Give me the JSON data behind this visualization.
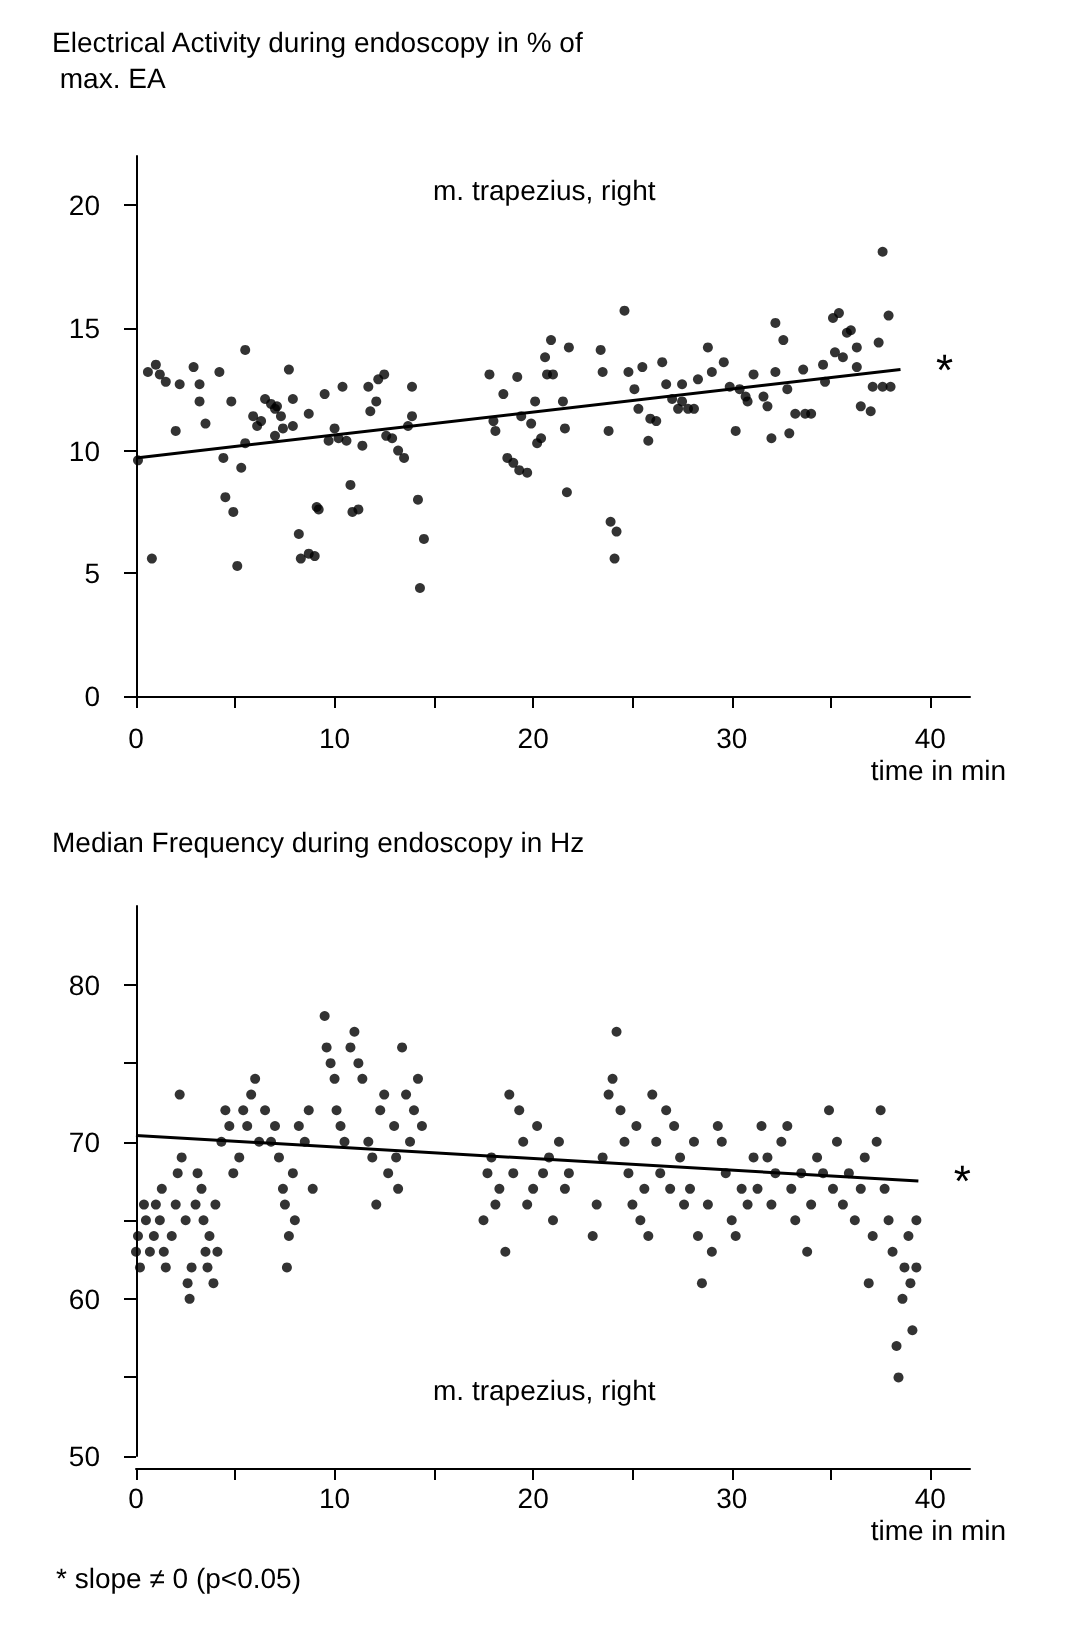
{
  "chart_data": [
    {
      "type": "scatter",
      "ylabel": "Electrical Activity during endoscopy in % of max. EA",
      "xlabel": "time in min",
      "annotations": [
        "m. trapezius, right",
        "*"
      ],
      "xlim": [
        0,
        42
      ],
      "ylim": [
        0,
        22
      ],
      "xticks": [
        0,
        {
          "value": 5,
          "label": null
        },
        10,
        {
          "value": 15,
          "label": null
        },
        20,
        {
          "value": 25,
          "label": null
        },
        30,
        {
          "value": 35,
          "label": null
        },
        40
      ],
      "yticks": [
        0,
        5,
        10,
        15,
        20
      ],
      "grid": false,
      "series": [
        {
          "marker": "circle",
          "color": "#000000",
          "x": [
            0.1,
            0.8,
            0.6,
            1.0,
            1.2,
            1.5,
            2.0,
            2.2,
            2.9,
            3.2,
            3.2,
            3.5,
            4.2,
            4.4,
            4.5,
            4.8,
            4.9,
            5.1,
            5.3,
            5.5,
            5.5,
            5.9,
            6.1,
            6.3,
            6.5,
            6.8,
            7.0,
            7.1,
            7.3,
            7.0,
            7.4,
            7.9,
            7.7,
            7.9,
            8.2,
            8.3,
            8.7,
            9.0,
            9.1,
            9.2,
            8.7,
            9.5,
            9.7,
            10.0,
            10.2,
            10.6,
            10.4,
            10.8,
            10.9,
            11.2,
            11.4,
            11.8,
            11.7,
            12.2,
            12.5,
            12.1,
            12.6,
            12.9,
            13.2,
            13.5,
            13.9,
            13.9,
            13.7,
            14.2,
            14.5,
            14.3,
            17.8,
            18.0,
            18.1,
            18.5,
            18.7,
            19.0,
            19.3,
            19.7,
            19.2,
            19.4,
            19.9,
            20.1,
            20.2,
            20.4,
            20.6,
            20.9,
            20.7,
            21.0,
            21.5,
            21.6,
            21.8,
            21.7,
            23.4,
            23.5,
            23.8,
            23.9,
            24.2,
            24.1,
            24.6,
            24.8,
            25.1,
            25.3,
            25.5,
            25.8,
            25.9,
            26.2,
            26.5,
            26.7,
            27.0,
            27.3,
            27.5,
            27.8,
            28.1,
            27.5,
            28.3,
            28.8,
            29.0,
            29.6,
            29.9,
            30.4,
            30.7,
            30.8,
            30.2,
            31.1,
            31.6,
            31.8,
            32.0,
            32.2,
            32.2,
            32.6,
            32.8,
            32.9,
            33.2,
            33.7,
            34.0,
            33.6,
            34.6,
            34.7,
            35.1,
            35.4,
            35.2,
            35.6,
            35.8,
            36.0,
            36.3,
            36.3,
            36.5,
            37.0,
            37.4,
            37.6,
            37.9,
            37.1,
            37.6,
            38.0
          ],
          "values": [
            9.6,
            5.6,
            13.2,
            13.5,
            13.1,
            12.8,
            10.8,
            12.7,
            13.4,
            12.7,
            12.0,
            11.1,
            13.2,
            9.7,
            8.1,
            12.0,
            7.5,
            5.3,
            9.3,
            14.1,
            10.3,
            11.4,
            11.0,
            11.2,
            12.1,
            11.9,
            11.7,
            11.8,
            11.4,
            10.6,
            10.9,
            11.0,
            13.3,
            12.1,
            6.6,
            5.6,
            5.8,
            5.7,
            7.7,
            7.6,
            11.5,
            12.3,
            10.4,
            10.9,
            10.5,
            10.4,
            12.6,
            8.6,
            7.5,
            7.6,
            10.2,
            11.6,
            12.6,
            12.9,
            13.1,
            12.0,
            10.6,
            10.5,
            10.0,
            9.7,
            12.6,
            11.4,
            11.0,
            8.0,
            6.4,
            4.4,
            13.1,
            11.2,
            10.8,
            12.3,
            9.7,
            9.5,
            9.2,
            9.1,
            13.0,
            11.4,
            11.1,
            12.0,
            10.3,
            10.5,
            13.8,
            14.5,
            13.1,
            13.1,
            12.0,
            10.9,
            14.2,
            8.3,
            14.1,
            13.2,
            10.8,
            7.1,
            6.7,
            5.6,
            15.7,
            13.2,
            12.5,
            11.7,
            13.4,
            10.4,
            11.3,
            11.2,
            13.6,
            12.7,
            12.1,
            11.7,
            12.0,
            11.7,
            11.7,
            12.7,
            12.9,
            14.2,
            13.2,
            13.6,
            12.6,
            12.5,
            12.2,
            12.0,
            10.8,
            13.1,
            12.2,
            11.8,
            10.5,
            15.2,
            13.2,
            14.5,
            12.5,
            10.7,
            11.5,
            11.5,
            11.5,
            13.3,
            13.5,
            12.8,
            15.4,
            15.6,
            14.0,
            13.8,
            14.8,
            14.9,
            14.2,
            13.4,
            11.8,
            11.6,
            14.4,
            18.1,
            15.5,
            12.6,
            12.6,
            12.6
          ]
        },
        {
          "type": "line",
          "color": "#000000",
          "x": [
            0,
            38.5
          ],
          "values": [
            9.7,
            13.3
          ]
        }
      ]
    },
    {
      "type": "scatter",
      "ylabel": "Median Frequency during endoscopy in Hz",
      "xlabel": "time in min",
      "annotations": [
        "m. trapezius, right",
        "*",
        "* slope ≠ 0 (p<0.05)"
      ],
      "xlim": [
        0,
        42
      ],
      "ylim": [
        50,
        85
      ],
      "xticks": [
        0,
        {
          "value": 5,
          "label": null
        },
        10,
        {
          "value": 15,
          "label": null
        },
        20,
        {
          "value": 25,
          "label": null
        },
        30,
        {
          "value": 35,
          "label": null
        },
        40
      ],
      "yticks": [
        50,
        {
          "value": 55,
          "label": null
        },
        60,
        {
          "value": 65,
          "label": null
        },
        70,
        {
          "value": 75,
          "label": null
        },
        80
      ],
      "grid": false,
      "series": [
        {
          "marker": "circle",
          "color": "#000000",
          "x": [
            0,
            0.1,
            0.2,
            0.4,
            0.5,
            0.7,
            0.9,
            1.0,
            1.2,
            1.4,
            1.5,
            1.3,
            1.8,
            2.0,
            2.1,
            2.2,
            2.3,
            2.5,
            2.6,
            2.7,
            2.8,
            3.0,
            3.1,
            3.3,
            3.5,
            3.6,
            3.7,
            3.9,
            4.1,
            4.0,
            3.4,
            4.3,
            4.5,
            4.7,
            4.9,
            5.2,
            5.4,
            5.6,
            5.8,
            6.0,
            6.2,
            6.5,
            6.8,
            7.0,
            7.2,
            7.4,
            7.5,
            7.6,
            7.7,
            7.9,
            8.2,
            8.5,
            8.7,
            8.9,
            8.0,
            9.5,
            9.6,
            9.8,
            10.0,
            10.1,
            10.3,
            10.5,
            10.8,
            11.0,
            11.2,
            11.4,
            11.7,
            11.9,
            12.1,
            12.3,
            12.5,
            12.7,
            13.0,
            13.2,
            13.4,
            13.6,
            13.8,
            14.0,
            14.2,
            14.4,
            13.1,
            17.5,
            17.7,
            17.9,
            18.1,
            18.3,
            18.6,
            18.8,
            19.0,
            19.3,
            19.5,
            19.7,
            20.0,
            20.2,
            20.5,
            20.8,
            21.0,
            21.3,
            21.6,
            21.8,
            23.0,
            23.2,
            23.5,
            23.8,
            24.0,
            24.2,
            24.4,
            24.6,
            24.8,
            25.0,
            25.2,
            25.4,
            25.6,
            25.8,
            26.0,
            26.2,
            26.4,
            26.7,
            26.9,
            27.1,
            27.4,
            27.6,
            27.9,
            28.1,
            28.3,
            28.5,
            28.8,
            29.0,
            29.3,
            29.5,
            29.7,
            30.0,
            30.2,
            30.5,
            30.8,
            31.1,
            31.3,
            31.5,
            31.8,
            32.0,
            32.2,
            32.5,
            32.8,
            33.0,
            33.2,
            33.5,
            33.8,
            34.0,
            34.3,
            34.6,
            34.9,
            35.1,
            35.3,
            35.6,
            35.9,
            36.2,
            36.5,
            36.7,
            36.9,
            37.1,
            37.3,
            37.5,
            37.7,
            37.9,
            38.1,
            38.3,
            38.4,
            38.6,
            38.7,
            38.9,
            39.0,
            39.1,
            39.3,
            39.3
          ],
          "values": [
            63,
            64,
            62,
            66,
            65,
            63,
            64,
            66,
            65,
            63,
            62,
            67,
            64,
            66,
            68,
            73,
            69,
            65,
            61,
            60,
            62,
            66,
            68,
            67,
            63,
            62,
            64,
            61,
            63,
            66,
            65,
            70,
            72,
            71,
            68,
            69,
            72,
            71,
            73,
            74,
            70,
            72,
            70,
            71,
            69,
            67,
            66,
            62,
            64,
            68,
            71,
            70,
            72,
            67,
            65,
            78,
            76,
            75,
            74,
            72,
            71,
            70,
            76,
            77,
            75,
            74,
            70,
            69,
            66,
            72,
            73,
            68,
            71,
            67,
            76,
            73,
            70,
            72,
            74,
            71,
            69,
            65,
            68,
            69,
            66,
            67,
            63,
            73,
            68,
            72,
            70,
            66,
            67,
            71,
            68,
            69,
            65,
            70,
            67,
            68,
            64,
            66,
            69,
            73,
            74,
            77,
            72,
            70,
            68,
            66,
            71,
            65,
            67,
            64,
            73,
            70,
            68,
            72,
            67,
            71,
            69,
            66,
            67,
            70,
            64,
            61,
            66,
            63,
            71,
            70,
            68,
            65,
            64,
            67,
            66,
            69,
            67,
            71,
            69,
            66,
            68,
            70,
            71,
            67,
            65,
            68,
            63,
            66,
            69,
            68,
            72,
            67,
            70,
            66,
            68,
            65,
            67,
            69,
            61,
            64,
            70,
            72,
            67,
            65,
            63,
            57,
            55,
            60,
            62,
            64,
            61,
            58,
            62,
            65
          ]
        },
        {
          "type": "line",
          "color": "#000000",
          "x": [
            0,
            39.4
          ],
          "values": [
            70.4,
            67.5
          ]
        }
      ]
    }
  ]
}
